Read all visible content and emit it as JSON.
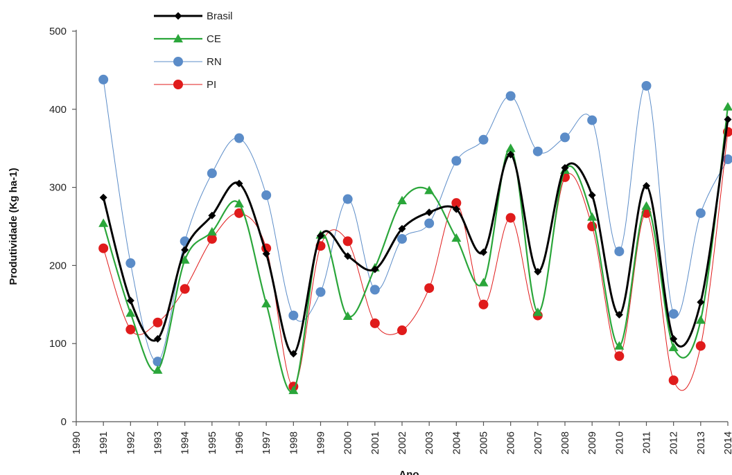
{
  "chart_data": {
    "type": "line",
    "xlabel": "Ano",
    "ylabel": "Produtividade (Kg ha-1)",
    "ylim": [
      0,
      500
    ],
    "yticks": [
      0,
      100,
      200,
      300,
      400,
      500
    ],
    "xlim": [
      1990,
      2014
    ],
    "x": [
      1991,
      1992,
      1993,
      1994,
      1995,
      1996,
      1997,
      1998,
      1999,
      2000,
      2001,
      2002,
      2003,
      2004,
      2005,
      2006,
      2007,
      2008,
      2009,
      2010,
      2011,
      2012,
      2013,
      2014
    ],
    "xtick_labels": [
      "1990",
      "1991",
      "1992",
      "1993",
      "1994",
      "1995",
      "1996",
      "1997",
      "1998",
      "1999",
      "2000",
      "2001",
      "2002",
      "2003",
      "2004",
      "2005",
      "2006",
      "2007",
      "2008",
      "2009",
      "2010",
      "2011",
      "2012",
      "2013",
      "2014"
    ],
    "legend_position": "top-left",
    "grid": false,
    "series": [
      {
        "name": "Brasil",
        "color": "#000000",
        "marker": "diamond",
        "values": [
          287,
          155,
          106,
          220,
          264,
          305,
          215,
          87,
          238,
          212,
          195,
          247,
          268,
          272,
          217,
          342,
          192,
          325,
          290,
          137,
          302,
          106,
          153,
          387
        ]
      },
      {
        "name": "CE",
        "color": "#2aa63a",
        "marker": "triangle",
        "values": [
          254,
          139,
          66,
          207,
          243,
          279,
          151,
          40,
          239,
          135,
          197,
          283,
          296,
          235,
          178,
          350,
          140,
          322,
          262,
          97,
          276,
          95,
          130,
          403
        ]
      },
      {
        "name": "RN",
        "color": "#5b8cc8",
        "marker": "circle",
        "values": [
          438,
          203,
          77,
          231,
          318,
          363,
          290,
          136,
          166,
          285,
          169,
          234,
          254,
          334,
          361,
          417,
          346,
          364,
          386,
          218,
          430,
          138,
          267,
          336
        ]
      },
      {
        "name": "PI",
        "color": "#e01b1b",
        "marker": "circle",
        "values": [
          222,
          118,
          127,
          170,
          234,
          267,
          222,
          45,
          225,
          231,
          126,
          117,
          171,
          280,
          150,
          261,
          136,
          313,
          250,
          84,
          267,
          53,
          97,
          371
        ]
      }
    ]
  }
}
